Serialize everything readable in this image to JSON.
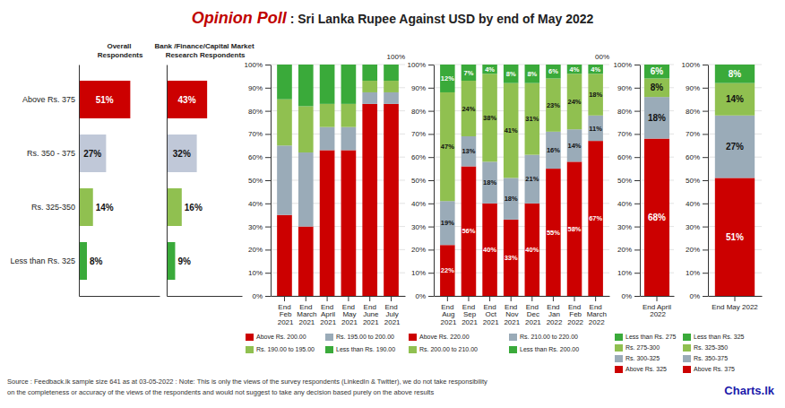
{
  "title": "Opinion Poll",
  "subtitle": ": Sri Lanka Rupee Against USD by end of May 2022",
  "annotations": [
    "Source : Feedback.lk sample size 641 as at 03-05-2022  : Note: This is only the views of the survey respondents (LinkedIn & Twitter), we do not take responsibility",
    "on the completeness or accuracy of the views  of the respondents and  would not suggest to take any decision based purely on the above results",
    "Charts.lk"
  ],
  "chart_data": [
    {
      "type": "bar",
      "orientation": "horizontal",
      "title": "Overall\nRespondents",
      "categories": [
        "Above Rs. 375",
        "Rs. 350 - 375",
        "Rs. 325-350",
        "Less than Rs. 325"
      ],
      "values": [
        51,
        27,
        14,
        8
      ],
      "value_labels": [
        "51%",
        "27%",
        "14%",
        "8%"
      ],
      "colors": [
        "#CC0000",
        "#c0c8d8",
        "#90c050",
        "#3aaa3a"
      ],
      "xlim": [
        0,
        80
      ],
      "tick_labels": false,
      "grid": false,
      "data_labels": true
    },
    {
      "type": "bar",
      "orientation": "horizontal",
      "title": "Bank /Finance/Capital Market\nResearch Respondents",
      "categories": [
        null,
        null,
        null,
        null
      ],
      "values": [
        43,
        32,
        16,
        9
      ],
      "value_labels": [
        "43%",
        "32%",
        "16%",
        "9%"
      ],
      "colors": [
        "#CC0000",
        "#c0c8d8",
        "#90c050",
        "#3aaa3a"
      ],
      "xlim": [
        0,
        80
      ],
      "tick_labels": false,
      "grid": false,
      "data_labels": true
    },
    {
      "type": "bar",
      "stacked": true,
      "categories": [
        "End\nFeb\n2021",
        "End\nMarch\n2021",
        "End\nApril\n2021",
        "End\nMay\n2021",
        "End\nJune\n2021",
        "End\nJuly\n2021"
      ],
      "series": [
        {
          "name": "Above Rs. 200.00",
          "color": "#CC0000",
          "values": [
            35,
            30,
            63,
            63,
            83,
            83
          ]
        },
        {
          "name": "Rs. 195.00 to 200.00",
          "color": "#9aabb8",
          "values": [
            30,
            32,
            10,
            10,
            5,
            5
          ]
        },
        {
          "name": "Rs. 190.00 to 195.00",
          "color": "#90c050",
          "values": [
            20,
            20,
            10,
            10,
            5,
            5
          ]
        },
        {
          "name": "Less than Rs. 190.00",
          "color": "#3aaa3a",
          "values": [
            15,
            18,
            17,
            17,
            7,
            7
          ]
        }
      ],
      "ylim": [
        0,
        100
      ],
      "yticks": [
        {
          "value": 0,
          "label": "0%"
        },
        {
          "value": 10,
          "label": "10%"
        },
        {
          "value": 20,
          "label": "20%"
        },
        {
          "value": 30,
          "label": "30%"
        },
        {
          "value": 40,
          "label": "40%"
        },
        {
          "value": 50,
          "label": "50%"
        },
        {
          "value": 60,
          "label": "60%"
        },
        {
          "value": 70,
          "label": "70%"
        },
        {
          "value": 80,
          "label": "80%"
        },
        {
          "value": 90,
          "label": "90%"
        },
        {
          "value": 100,
          "label": "100%"
        }
      ],
      "grid": true,
      "data_labels": false,
      "annotations": [
        "100%"
      ]
    },
    {
      "type": "bar",
      "stacked": true,
      "categories": [
        "End\nAug\n2021",
        "End\nSep\n2021",
        "End\nOct\n2021",
        "End\nNov\n2021",
        "End\nDec\n2021",
        "End\nJan\n2022",
        "End\nFeb\n2022",
        "End\nMarch\n2022"
      ],
      "series": [
        {
          "name": "Above Rs. 220.00",
          "color": "#CC0000",
          "values": [
            22,
            56,
            40,
            33,
            40,
            55,
            58,
            67
          ],
          "value_labels": [
            "22%",
            "56%",
            "40%",
            "33%",
            "40%",
            "55%",
            "58%",
            "67%"
          ]
        },
        {
          "name": "Rs. 210.00 to 220.00",
          "color": "#9aabb8",
          "values": [
            19,
            13,
            18,
            18,
            21,
            16,
            14,
            11
          ],
          "value_labels": [
            "19%",
            "13%",
            "18%",
            "18%",
            "21%",
            "16%",
            "14%",
            "11%"
          ]
        },
        {
          "name": "Rs. 200.00 to 210.00",
          "color": "#90c050",
          "values": [
            47,
            24,
            38,
            41,
            31,
            23,
            24,
            18
          ],
          "value_labels": [
            "47%",
            "24%",
            "38%",
            "41%",
            "31%",
            "23%",
            "24%",
            "18%"
          ]
        },
        {
          "name": "Less than Rs. 200.00",
          "color": "#3aaa3a",
          "values": [
            12,
            7,
            4,
            8,
            8,
            6,
            4,
            4
          ],
          "value_labels": [
            "12%",
            "7%",
            "4%",
            "8%",
            "8%",
            "6%",
            "4%",
            "4%"
          ]
        }
      ],
      "ylim": [
        0,
        100
      ],
      "yticks": [
        {
          "value": 0,
          "label": "0%"
        },
        {
          "value": 10,
          "label": "10%"
        },
        {
          "value": 20,
          "label": "20%"
        },
        {
          "value": 30,
          "label": "30%"
        },
        {
          "value": 40,
          "label": "40%"
        },
        {
          "value": 50,
          "label": "50%"
        },
        {
          "value": 60,
          "label": "60%"
        },
        {
          "value": 70,
          "label": "70%"
        },
        {
          "value": 80,
          "label": "80%"
        },
        {
          "value": 90,
          "label": "90%"
        },
        {
          "value": 100,
          "label": "100%"
        }
      ],
      "grid": true,
      "data_labels": true,
      "annotations": [
        "00%"
      ]
    },
    {
      "type": "bar",
      "stacked": true,
      "categories": [
        "End April\n2022"
      ],
      "series": [
        {
          "name": "Above Rs. 325",
          "color": "#CC0000",
          "values": [
            68
          ],
          "value_labels": [
            "68%"
          ]
        },
        {
          "name": "Rs. 300-325",
          "color": "#9aabb8",
          "values": [
            18
          ],
          "value_labels": [
            "18%"
          ]
        },
        {
          "name": "Rs. 275-300",
          "color": "#90c050",
          "values": [
            8
          ],
          "value_labels": [
            "8%"
          ]
        },
        {
          "name": "Less than Rs. 275",
          "color": "#3aaa3a",
          "values": [
            6
          ],
          "value_labels": [
            "6%"
          ]
        }
      ],
      "ylim": [
        0,
        100
      ],
      "yticks": [
        {
          "value": 0,
          "label": "0%"
        },
        {
          "value": 10,
          "label": "10%"
        },
        {
          "value": 20,
          "label": "20%"
        },
        {
          "value": 30,
          "label": "30%"
        },
        {
          "value": 40,
          "label": "40%"
        },
        {
          "value": 50,
          "label": "50%"
        },
        {
          "value": 60,
          "label": "60%"
        },
        {
          "value": 70,
          "label": "70%"
        },
        {
          "value": 80,
          "label": "80%"
        },
        {
          "value": 90,
          "label": "90%"
        },
        {
          "value": 100,
          "label": "100%"
        }
      ],
      "grid": true,
      "data_labels": true
    },
    {
      "type": "bar",
      "stacked": true,
      "categories": [
        "End May 2022"
      ],
      "series": [
        {
          "name": "Above Rs. 375",
          "color": "#CC0000",
          "values": [
            51
          ],
          "value_labels": [
            "51%"
          ]
        },
        {
          "name": "Rs. 350-375",
          "color": "#9aabb8",
          "values": [
            27
          ],
          "value_labels": [
            "27%"
          ]
        },
        {
          "name": "Rs. 325-350",
          "color": "#90c050",
          "values": [
            14
          ],
          "value_labels": [
            "14%"
          ]
        },
        {
          "name": "Less than Rs. 325",
          "color": "#3aaa3a",
          "values": [
            8
          ],
          "value_labels": [
            "8%"
          ]
        }
      ],
      "ylim": [
        0,
        100
      ],
      "yticks": [
        {
          "value": 0,
          "label": "0%"
        },
        {
          "value": 10,
          "label": "10%"
        },
        {
          "value": 20,
          "label": "20%"
        },
        {
          "value": 30,
          "label": "30%"
        },
        {
          "value": 40,
          "label": "40%"
        },
        {
          "value": 50,
          "label": "50%"
        },
        {
          "value": 60,
          "label": "60%"
        },
        {
          "value": 70,
          "label": "70%"
        },
        {
          "value": 80,
          "label": "80%"
        },
        {
          "value": 90,
          "label": "90%"
        },
        {
          "value": 100,
          "label": "100%"
        }
      ],
      "grid": true,
      "data_labels": true
    }
  ]
}
